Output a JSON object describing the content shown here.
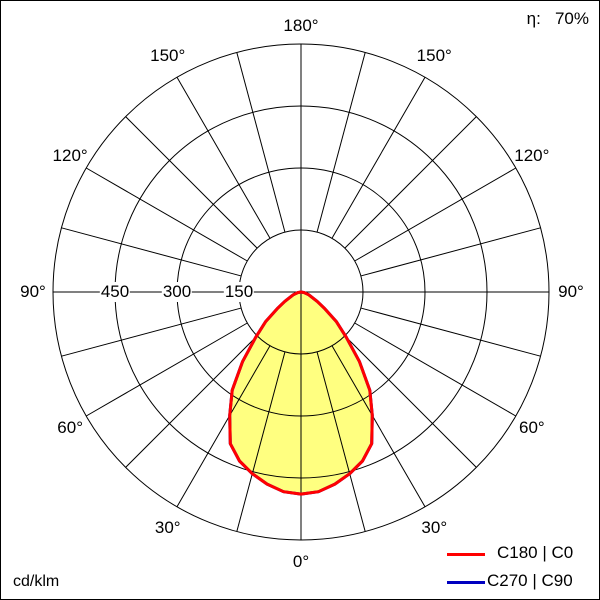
{
  "efficiency": {
    "label": "η:",
    "value": "70%"
  },
  "unit": "cd/klm",
  "legend": [
    {
      "name": "C180 | C0",
      "color": "#ff0000"
    },
    {
      "name": "C270 | C90",
      "color": "#0000c0"
    }
  ],
  "chart_data": {
    "type": "polar",
    "unit": "cd/klm",
    "radial_ticks": [
      "150",
      "300",
      "450"
    ],
    "r_max": 600,
    "angle_labels": {
      "0": "0°",
      "30": "30°",
      "60": "60°",
      "90": "90°",
      "120": "120°",
      "150": "150°",
      "180": "180°"
    },
    "fill_color": "#ffff80",
    "angles_deg": [
      0,
      5,
      10,
      15,
      20,
      25,
      30,
      35,
      40,
      45,
      50,
      55,
      60,
      70,
      80,
      90
    ],
    "series": [
      {
        "name": "C180 | C0",
        "color": "#ff0000",
        "values": [
          489,
          485,
          472,
          455,
          435,
          405,
          345,
          290,
          220,
          155,
          112,
          70,
          45,
          20,
          8,
          0
        ]
      },
      {
        "name": "C270 | C90",
        "color": "#0000c0",
        "values": [
          489,
          485,
          472,
          455,
          435,
          405,
          345,
          290,
          220,
          155,
          112,
          70,
          45,
          20,
          8,
          0
        ]
      }
    ]
  }
}
